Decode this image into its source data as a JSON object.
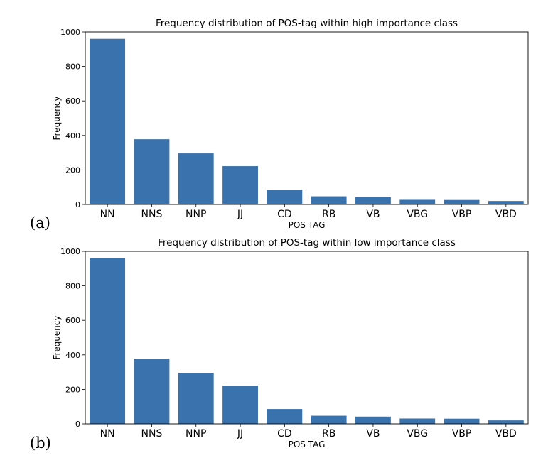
{
  "panels": [
    {
      "label": "(a)"
    },
    {
      "label": "(b)"
    }
  ],
  "chart_data": [
    {
      "type": "bar",
      "title": "Frequency distribution of POS-tag within high importance class",
      "xlabel": "POS TAG",
      "ylabel": "Frequency",
      "categories": [
        "NN",
        "NNS",
        "NNP",
        "JJ",
        "CD",
        "RB",
        "VB",
        "VBG",
        "VBP",
        "VBD"
      ],
      "values": [
        960,
        378,
        296,
        222,
        86,
        47,
        42,
        31,
        30,
        20
      ],
      "ylim": [
        0,
        1000
      ],
      "yticks": [
        0,
        200,
        400,
        600,
        800,
        1000
      ],
      "grid": false,
      "bar_color": "#3a72ad"
    },
    {
      "type": "bar",
      "title": "Frequency distribution of POS-tag within low importance class",
      "xlabel": "POS TAG",
      "ylabel": "Frequency",
      "categories": [
        "NN",
        "NNS",
        "NNP",
        "JJ",
        "CD",
        "RB",
        "VB",
        "VBG",
        "VBP",
        "VBD"
      ],
      "values": [
        960,
        378,
        296,
        222,
        86,
        47,
        42,
        31,
        30,
        20
      ],
      "ylim": [
        0,
        1000
      ],
      "yticks": [
        0,
        200,
        400,
        600,
        800,
        1000
      ],
      "grid": false,
      "bar_color": "#3a72ad"
    }
  ]
}
